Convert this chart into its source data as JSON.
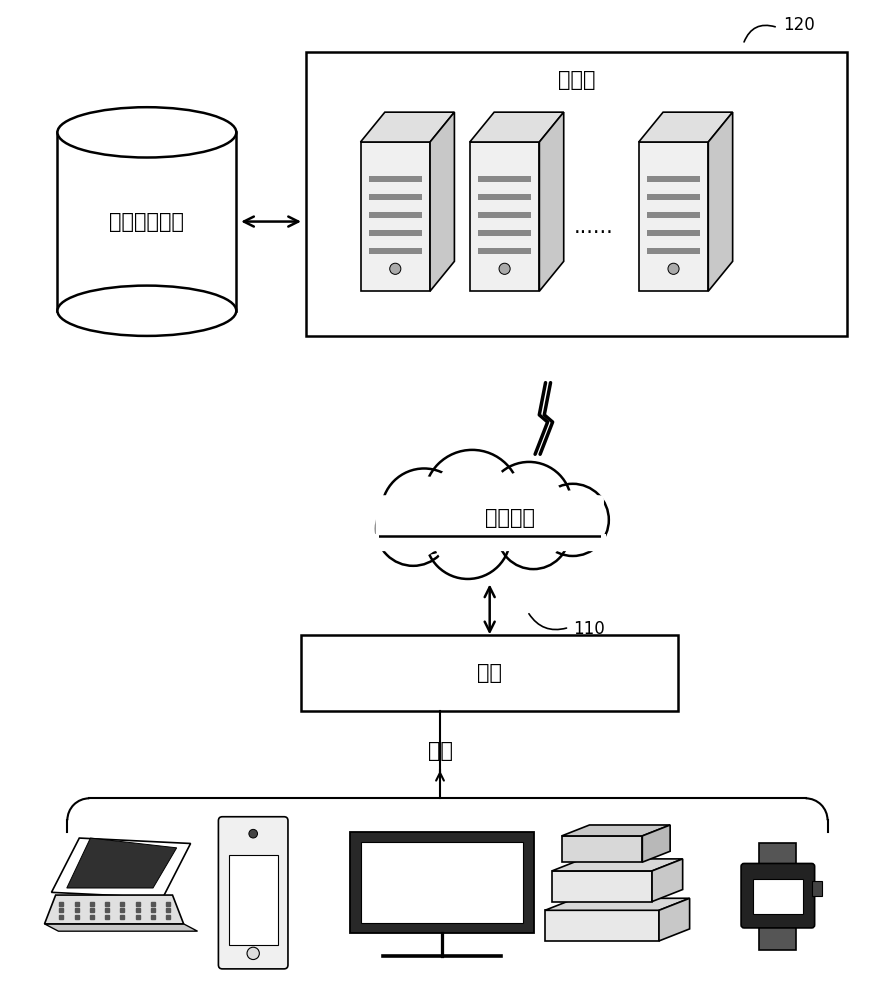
{
  "bg_color": "#ffffff",
  "label_120": "120",
  "label_110": "110",
  "server_label": "服务器",
  "storage_label": "数据存储系统",
  "network_label": "通信网络",
  "terminal_label": "终端",
  "example_label": "例如",
  "dots_label": "......",
  "font_size_main": 15,
  "font_size_label": 12,
  "line_color": "#000000",
  "box_color": "#ffffff",
  "box_edge_color": "#000000"
}
